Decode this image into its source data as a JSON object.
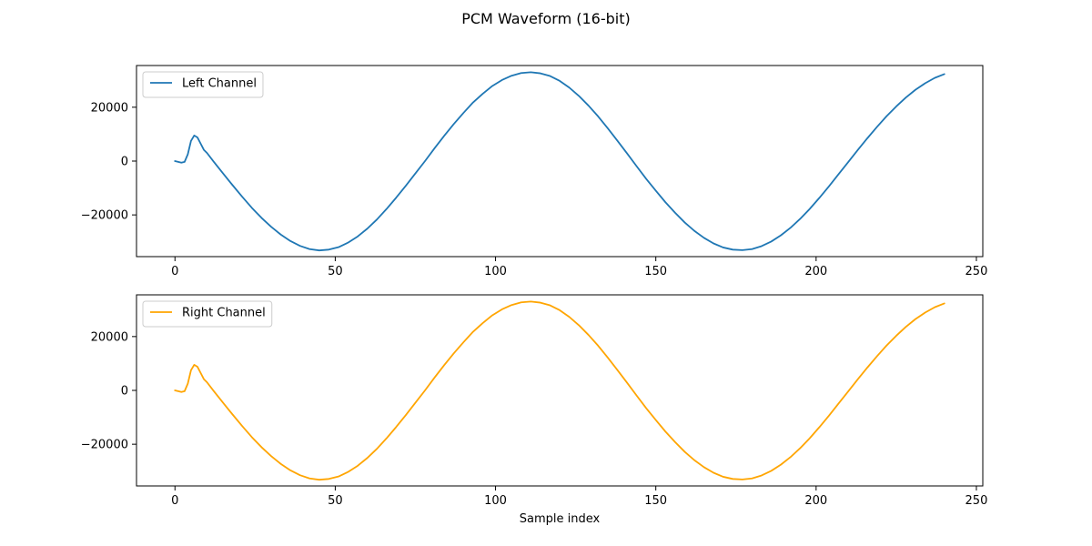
{
  "figure": {
    "suptitle": "PCM Waveform (16-bit)"
  },
  "chart_data": [
    {
      "type": "line",
      "title": "",
      "xlabel": "",
      "ylabel": "",
      "xlim": [
        -12,
        252
      ],
      "ylim": [
        -35500,
        35500
      ],
      "xticks": [
        0,
        50,
        100,
        150,
        200,
        250
      ],
      "yticks": [
        -20000,
        0,
        20000
      ],
      "grid": false,
      "legend_position": "upper-left",
      "series": [
        {
          "name": "Left Channel",
          "color": "#1f77b4",
          "x": [
            0,
            1,
            2,
            3,
            4,
            5,
            6,
            7,
            8,
            9,
            10,
            12,
            15,
            18,
            21,
            24,
            27,
            30,
            33,
            36,
            39,
            42,
            45,
            48,
            51,
            54,
            57,
            60,
            63,
            66,
            69,
            72,
            75,
            78,
            81,
            84,
            87,
            90,
            93,
            96,
            99,
            102,
            105,
            108,
            111,
            114,
            117,
            120,
            123,
            126,
            129,
            132,
            135,
            138,
            141,
            144,
            147,
            150,
            153,
            156,
            159,
            162,
            165,
            168,
            171,
            174,
            177,
            180,
            183,
            186,
            189,
            192,
            195,
            198,
            201,
            204,
            207,
            210,
            213,
            216,
            219,
            222,
            225,
            228,
            231,
            234,
            237,
            240
          ],
          "y": [
            0,
            -300,
            -600,
            -300,
            2500,
            7500,
            9500,
            8800,
            6500,
            4200,
            3000,
            -100,
            -4600,
            -9000,
            -13300,
            -17400,
            -21100,
            -24400,
            -27300,
            -29700,
            -31500,
            -32700,
            -33200,
            -32900,
            -32000,
            -30300,
            -28000,
            -25100,
            -21700,
            -17800,
            -13600,
            -9200,
            -4600,
            0,
            4800,
            9400,
            13800,
            17900,
            21800,
            25000,
            27900,
            30100,
            31700,
            32700,
            33000,
            32600,
            31600,
            29800,
            27300,
            24200,
            20600,
            16600,
            12200,
            7600,
            2900,
            -1900,
            -6600,
            -11000,
            -15300,
            -19200,
            -22800,
            -25900,
            -28500,
            -30600,
            -32100,
            -32900,
            -33100,
            -32700,
            -31600,
            -29900,
            -27600,
            -24800,
            -21500,
            -17800,
            -13700,
            -9400,
            -4900,
            -400,
            4100,
            8500,
            12700,
            16700,
            20300,
            23600,
            26500,
            28900,
            30900,
            32300
          ]
        }
      ]
    },
    {
      "type": "line",
      "title": "",
      "xlabel": "Sample index",
      "ylabel": "",
      "xlim": [
        -12,
        252
      ],
      "ylim": [
        -35500,
        35500
      ],
      "xticks": [
        0,
        50,
        100,
        150,
        200,
        250
      ],
      "yticks": [
        -20000,
        0,
        20000
      ],
      "grid": false,
      "legend_position": "upper-left",
      "series": [
        {
          "name": "Right Channel",
          "color": "#ffa500",
          "x": [
            0,
            1,
            2,
            3,
            4,
            5,
            6,
            7,
            8,
            9,
            10,
            12,
            15,
            18,
            21,
            24,
            27,
            30,
            33,
            36,
            39,
            42,
            45,
            48,
            51,
            54,
            57,
            60,
            63,
            66,
            69,
            72,
            75,
            78,
            81,
            84,
            87,
            90,
            93,
            96,
            99,
            102,
            105,
            108,
            111,
            114,
            117,
            120,
            123,
            126,
            129,
            132,
            135,
            138,
            141,
            144,
            147,
            150,
            153,
            156,
            159,
            162,
            165,
            168,
            171,
            174,
            177,
            180,
            183,
            186,
            189,
            192,
            195,
            198,
            201,
            204,
            207,
            210,
            213,
            216,
            219,
            222,
            225,
            228,
            231,
            234,
            237,
            240
          ],
          "y": [
            0,
            -300,
            -600,
            -300,
            2500,
            7500,
            9500,
            8800,
            6500,
            4200,
            3000,
            -100,
            -4600,
            -9000,
            -13300,
            -17400,
            -21100,
            -24400,
            -27300,
            -29700,
            -31500,
            -32700,
            -33200,
            -32900,
            -32000,
            -30300,
            -28000,
            -25100,
            -21700,
            -17800,
            -13600,
            -9200,
            -4600,
            0,
            4800,
            9400,
            13800,
            17900,
            21800,
            25000,
            27900,
            30100,
            31700,
            32700,
            33000,
            32600,
            31600,
            29800,
            27300,
            24200,
            20600,
            16600,
            12200,
            7600,
            2900,
            -1900,
            -6600,
            -11000,
            -15300,
            -19200,
            -22800,
            -25900,
            -28500,
            -30600,
            -32100,
            -32900,
            -33100,
            -32700,
            -31600,
            -29900,
            -27600,
            -24800,
            -21500,
            -17800,
            -13700,
            -9400,
            -4900,
            -400,
            4100,
            8500,
            12700,
            16700,
            20300,
            23600,
            26500,
            28900,
            30900,
            32300
          ]
        }
      ]
    }
  ]
}
